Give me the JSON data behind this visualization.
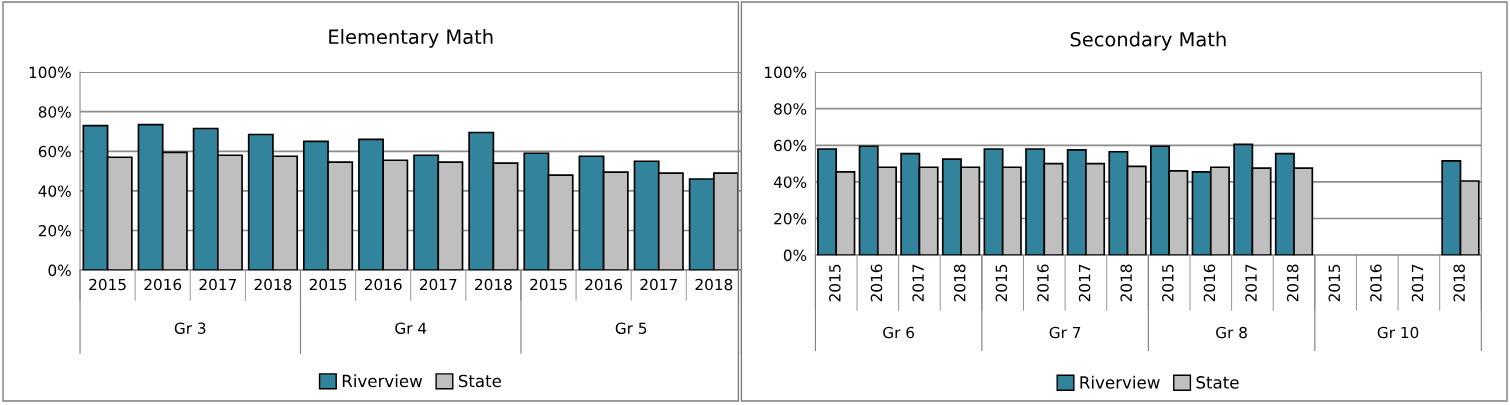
{
  "chart_data": [
    {
      "type": "bar",
      "title": "Elementary Math",
      "categories": [
        "2015",
        "2016",
        "2017",
        "2018",
        "2015",
        "2016",
        "2017",
        "2018",
        "2015",
        "2016",
        "2017",
        "2018"
      ],
      "annotations": [
        "Gr 3",
        "Gr 4",
        "Gr 5"
      ],
      "series": [
        {
          "name": "Riverview",
          "color": "#31849b",
          "values": [
            73,
            73.5,
            71.5,
            68.5,
            65,
            66,
            58,
            69.5,
            59,
            57.5,
            55,
            46
          ]
        },
        {
          "name": "State",
          "color": "#bfbfbf",
          "values": [
            57,
            59.5,
            58,
            57.5,
            54.5,
            55.5,
            54.5,
            54,
            48,
            49.5,
            49,
            49
          ]
        }
      ],
      "ylim": [
        0,
        100
      ],
      "yticks": [
        {
          "value": 0,
          "label": "0%"
        },
        {
          "value": 20,
          "label": "20%"
        },
        {
          "value": 40,
          "label": "40%"
        },
        {
          "value": 60,
          "label": "60%"
        },
        {
          "value": 80,
          "label": "80%"
        },
        {
          "value": 100,
          "label": "100%"
        }
      ],
      "grid": "y",
      "legend": "bottom"
    },
    {
      "type": "bar",
      "title": "Secondary Math",
      "categories": [
        "2015",
        "2016",
        "2017",
        "2018",
        "2015",
        "2016",
        "2017",
        "2018",
        "2015",
        "2016",
        "2017",
        "2018",
        "2015",
        "2016",
        "2017",
        "2018"
      ],
      "annotations": [
        "Gr 6",
        "Gr 7",
        "Gr 8",
        "Gr 10"
      ],
      "series": [
        {
          "name": "Riverview",
          "color": "#31849b",
          "values": [
            58,
            59.5,
            55.5,
            52.5,
            58,
            58,
            57.5,
            56.5,
            59.5,
            45.5,
            60.5,
            55.5,
            null,
            null,
            null,
            51.5
          ]
        },
        {
          "name": "State",
          "color": "#bfbfbf",
          "values": [
            45.5,
            48,
            48,
            48,
            48,
            50,
            50,
            48.5,
            46,
            48,
            47.5,
            47.5,
            null,
            null,
            null,
            40.5
          ]
        }
      ],
      "ylim": [
        0,
        100
      ],
      "yticks": [
        {
          "value": 0,
          "label": "0%"
        },
        {
          "value": 20,
          "label": "20%"
        },
        {
          "value": 40,
          "label": "40%"
        },
        {
          "value": 60,
          "label": "60%"
        },
        {
          "value": 80,
          "label": "80%"
        },
        {
          "value": 100,
          "label": "100%"
        }
      ],
      "grid": "y",
      "legend": "bottom"
    }
  ]
}
